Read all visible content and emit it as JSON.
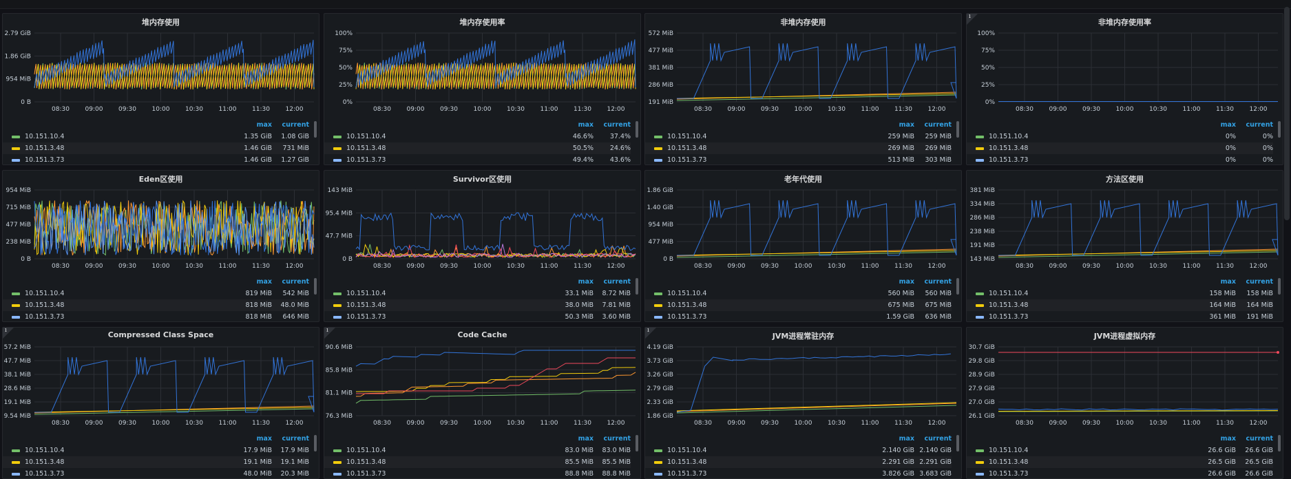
{
  "times": [
    "08:30",
    "09:00",
    "09:30",
    "10:00",
    "10:30",
    "11:00",
    "11:30",
    "12:00"
  ],
  "colors": {
    "host1": "#73bf69",
    "host2": "#f2cc0c",
    "host3": "#8ab8ff",
    "blue": "#3274d9",
    "blue2": "#5794f2",
    "orange": "#ff9830",
    "red": "#f2495c",
    "purple": "#b877d9",
    "grid": "#2c2f35",
    "axis": "#c7d0d9",
    "header": "#33a2e5"
  },
  "legend_headers": {
    "max": "max",
    "current": "current"
  },
  "panels": [
    {
      "title": "堆内存使用",
      "info": false,
      "y_ticks": [
        "2.79 GiB",
        "1.86 GiB",
        "954 MiB",
        "0 B"
      ],
      "pattern": "sawdense",
      "legend": [
        {
          "name": "10.151.10.4",
          "max": "1.35 GiB",
          "current": "1.08 GiB"
        },
        {
          "name": "10.151.3.48",
          "max": "1.46 GiB",
          "current": "731 MiB"
        },
        {
          "name": "10.151.3.73",
          "max": "1.46 GiB",
          "current": "1.27 GiB"
        }
      ]
    },
    {
      "title": "堆内存使用率",
      "info": false,
      "y_ticks": [
        "100%",
        "75%",
        "50%",
        "25%",
        "0%"
      ],
      "pattern": "sawdense",
      "legend": [
        {
          "name": "10.151.10.4",
          "max": "46.6%",
          "current": "37.4%"
        },
        {
          "name": "10.151.3.48",
          "max": "50.5%",
          "current": "24.6%"
        },
        {
          "name": "10.151.3.73",
          "max": "49.4%",
          "current": "43.6%"
        }
      ]
    },
    {
      "title": "非堆内存使用",
      "info": false,
      "y_ticks": [
        "572 MiB",
        "477 MiB",
        "381 MiB",
        "286 MiB",
        "191 MiB"
      ],
      "pattern": "sawstep",
      "legend": [
        {
          "name": "10.151.10.4",
          "max": "259 MiB",
          "current": "259 MiB"
        },
        {
          "name": "10.151.3.48",
          "max": "269 MiB",
          "current": "269 MiB"
        },
        {
          "name": "10.151.3.73",
          "max": "513 MiB",
          "current": "303 MiB"
        }
      ]
    },
    {
      "title": "非堆内存使用率",
      "info": true,
      "y_ticks": [
        "100%",
        "75%",
        "50%",
        "25%",
        "0%"
      ],
      "pattern": "flat",
      "legend": [
        {
          "name": "10.151.10.4",
          "max": "0%",
          "current": "0%"
        },
        {
          "name": "10.151.3.48",
          "max": "0%",
          "current": "0%"
        },
        {
          "name": "10.151.3.73",
          "max": "0%",
          "current": "0%"
        }
      ]
    },
    {
      "title": "Eden区使用",
      "info": false,
      "y_ticks": [
        "954 MiB",
        "715 MiB",
        "477 MiB",
        "238 MiB",
        "0 B"
      ],
      "pattern": "eden",
      "legend": [
        {
          "name": "10.151.10.4",
          "max": "819 MiB",
          "current": "542 MiB"
        },
        {
          "name": "10.151.3.48",
          "max": "818 MiB",
          "current": "48.0 MiB"
        },
        {
          "name": "10.151.3.73",
          "max": "818 MiB",
          "current": "646 MiB"
        }
      ]
    },
    {
      "title": "Survivor区使用",
      "info": false,
      "y_ticks": [
        "143 MiB",
        "95.4 MiB",
        "47.7 MiB",
        "0 B"
      ],
      "pattern": "survivor",
      "legend": [
        {
          "name": "10.151.10.4",
          "max": "33.1 MiB",
          "current": "8.72 MiB"
        },
        {
          "name": "10.151.3.48",
          "max": "38.0 MiB",
          "current": "7.81 MiB"
        },
        {
          "name": "10.151.3.73",
          "max": "50.3 MiB",
          "current": "3.60 MiB"
        }
      ]
    },
    {
      "title": "老年代使用",
      "info": false,
      "y_ticks": [
        "1.86 GiB",
        "1.40 GiB",
        "954 MiB",
        "477 MiB",
        "0 B"
      ],
      "pattern": "sawstep",
      "legend": [
        {
          "name": "10.151.10.4",
          "max": "560 MiB",
          "current": "560 MiB"
        },
        {
          "name": "10.151.3.48",
          "max": "675 MiB",
          "current": "675 MiB"
        },
        {
          "name": "10.151.3.73",
          "max": "1.59 GiB",
          "current": "636 MiB"
        }
      ]
    },
    {
      "title": "方法区使用",
      "info": false,
      "y_ticks": [
        "381 MiB",
        "334 MiB",
        "286 MiB",
        "238 MiB",
        "191 MiB",
        "143 MiB"
      ],
      "pattern": "sawstep",
      "legend": [
        {
          "name": "10.151.10.4",
          "max": "158 MiB",
          "current": "158 MiB"
        },
        {
          "name": "10.151.3.48",
          "max": "164 MiB",
          "current": "164 MiB"
        },
        {
          "name": "10.151.3.73",
          "max": "361 MiB",
          "current": "191 MiB"
        }
      ]
    },
    {
      "title": "Compressed Class Space",
      "info": true,
      "y_ticks": [
        "57.2 MiB",
        "47.7 MiB",
        "38.1 MiB",
        "28.6 MiB",
        "19.1 MiB",
        "9.54 MiB"
      ],
      "pattern": "sawstep",
      "legend": [
        {
          "name": "10.151.10.4",
          "max": "17.9 MiB",
          "current": "17.9 MiB"
        },
        {
          "name": "10.151.3.48",
          "max": "19.1 MiB",
          "current": "19.1 MiB"
        },
        {
          "name": "10.151.3.73",
          "max": "48.0 MiB",
          "current": "20.3 MiB"
        }
      ]
    },
    {
      "title": "Code Cache",
      "info": true,
      "y_ticks": [
        "90.6 MiB",
        "85.8 MiB",
        "81.1 MiB",
        "76.3 MiB"
      ],
      "pattern": "codecache",
      "legend": [
        {
          "name": "10.151.10.4",
          "max": "83.0 MiB",
          "current": "83.0 MiB"
        },
        {
          "name": "10.151.3.48",
          "max": "85.5 MiB",
          "current": "85.5 MiB"
        },
        {
          "name": "10.151.3.73",
          "max": "88.8 MiB",
          "current": "88.8 MiB"
        }
      ]
    },
    {
      "title": "JVM进程常驻内存",
      "info": true,
      "y_ticks": [
        "4.19 GiB",
        "3.73 GiB",
        "3.26 GiB",
        "2.79 GiB",
        "2.33 GiB",
        "1.86 GiB"
      ],
      "pattern": "rss",
      "legend": [
        {
          "name": "10.151.10.4",
          "max": "2.140 GiB",
          "current": "2.140 GiB"
        },
        {
          "name": "10.151.3.48",
          "max": "2.291 GiB",
          "current": "2.291 GiB"
        },
        {
          "name": "10.151.3.73",
          "max": "3.826 GiB",
          "current": "3.683 GiB"
        }
      ]
    },
    {
      "title": "JVM进程虚拟内存",
      "info": false,
      "y_ticks": [
        "30.7 GiB",
        "29.8 GiB",
        "28.9 GiB",
        "27.9 GiB",
        "27.0 GiB",
        "26.1 GiB"
      ],
      "pattern": "virt",
      "legend": [
        {
          "name": "10.151.10.4",
          "max": "26.6 GiB",
          "current": "26.6 GiB"
        },
        {
          "name": "10.151.3.48",
          "max": "26.5 GiB",
          "current": "26.5 GiB"
        },
        {
          "name": "10.151.3.73",
          "max": "26.6 GiB",
          "current": "26.6 GiB"
        }
      ]
    }
  ]
}
